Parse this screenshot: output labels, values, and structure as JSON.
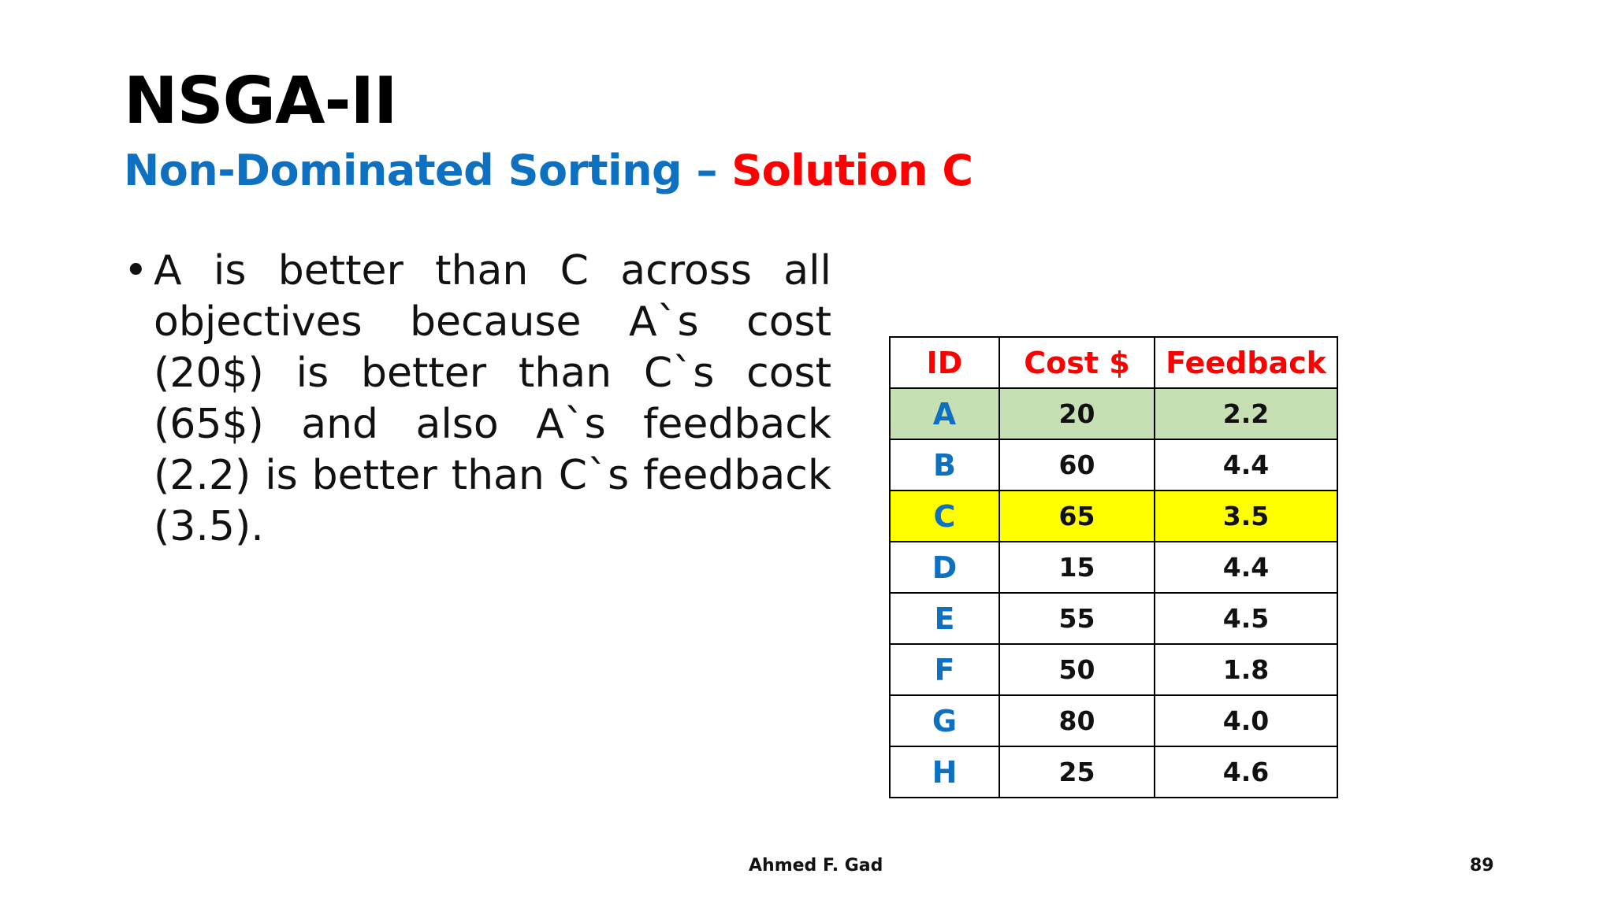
{
  "slide": {
    "title": "NSGA-II",
    "subtitle_part1": "Non-Dominated Sorting – ",
    "subtitle_part2": "Solution C",
    "bullet_symbol": "•",
    "bullet_text": "A is better than C across all objectives because A`s cost (20$) is better than C`s cost (65$) and also A`s feedback (2.2) is better than C`s feedback (3.5).",
    "colors": {
      "subtitle_blue": "#0E70C0",
      "subtitle_red": "#FF0000",
      "header_red": "#FF0000",
      "id_blue": "#0E70C0",
      "highlight_green": "#C6E0B4",
      "highlight_yellow": "#FFFF00"
    }
  },
  "table": {
    "headers": [
      "ID",
      "Cost $",
      "Feedback"
    ],
    "rows": [
      {
        "id": "A",
        "cost": "20",
        "feedback": "2.2",
        "highlight": "green"
      },
      {
        "id": "B",
        "cost": "60",
        "feedback": "4.4",
        "highlight": "none"
      },
      {
        "id": "C",
        "cost": "65",
        "feedback": "3.5",
        "highlight": "yellow"
      },
      {
        "id": "D",
        "cost": "15",
        "feedback": "4.4",
        "highlight": "none"
      },
      {
        "id": "E",
        "cost": "55",
        "feedback": "4.5",
        "highlight": "none"
      },
      {
        "id": "F",
        "cost": "50",
        "feedback": "1.8",
        "highlight": "none"
      },
      {
        "id": "G",
        "cost": "80",
        "feedback": "4.0",
        "highlight": "none"
      },
      {
        "id": "H",
        "cost": "25",
        "feedback": "4.6",
        "highlight": "none"
      }
    ]
  },
  "footer": {
    "author": "Ahmed F. Gad",
    "page_number": "89"
  }
}
